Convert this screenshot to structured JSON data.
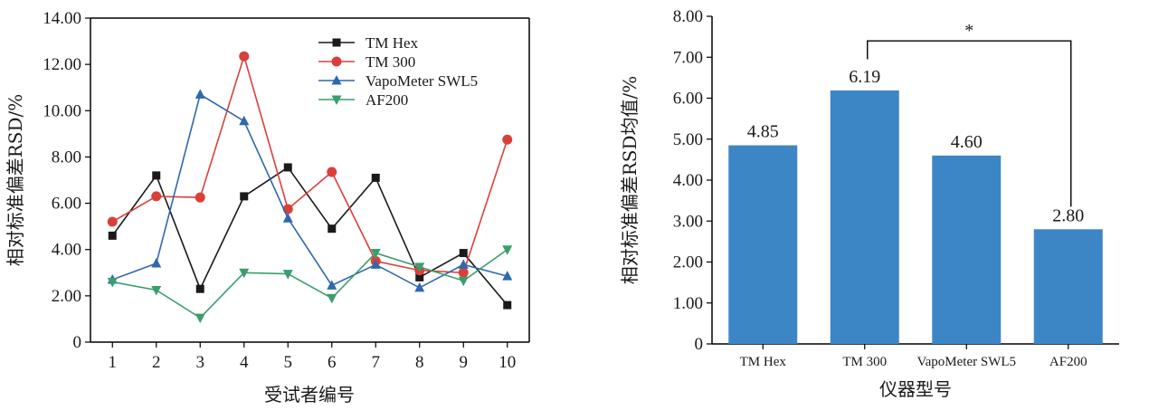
{
  "chart_data": [
    {
      "type": "line",
      "xlabel": "受试者编号",
      "ylabel": "相对标准偏差RSD/%",
      "x": [
        1,
        2,
        3,
        4,
        5,
        6,
        7,
        8,
        9,
        10
      ],
      "x_ticks": [
        "1",
        "2",
        "3",
        "4",
        "5",
        "6",
        "7",
        "8",
        "9",
        "10"
      ],
      "ylim": [
        0,
        14
      ],
      "y_ticks": [
        "0",
        "2.00",
        "4.00",
        "6.00",
        "8.00",
        "10.00",
        "12.00",
        "14.00"
      ],
      "legend_position": "top-right",
      "series": [
        {
          "name": "TM Hex",
          "color": "#1a1a1a",
          "marker": "square",
          "values": [
            4.6,
            7.2,
            2.3,
            6.3,
            7.55,
            4.9,
            7.1,
            2.8,
            3.85,
            1.6
          ]
        },
        {
          "name": "TM 300",
          "color": "#d9403a",
          "marker": "circle",
          "values": [
            5.2,
            6.3,
            6.25,
            12.35,
            5.75,
            7.35,
            3.5,
            3.1,
            3.0,
            8.75
          ]
        },
        {
          "name": "VapoMeter SWL5",
          "color": "#2f67b0",
          "marker": "triangle-up",
          "values": [
            2.7,
            3.4,
            10.7,
            9.55,
            5.35,
            2.45,
            3.35,
            2.35,
            3.35,
            2.85
          ]
        },
        {
          "name": "AF200",
          "color": "#3a9e6c",
          "marker": "triangle-down",
          "values": [
            2.6,
            2.25,
            1.05,
            3.0,
            2.95,
            1.9,
            3.85,
            3.25,
            2.65,
            4.0
          ]
        }
      ]
    },
    {
      "type": "bar",
      "xlabel": "仪器型号",
      "ylabel": "相对标准偏差RSD均值/%",
      "categories": [
        "TM Hex",
        "TM 300",
        "VapoMeter SWL5",
        "AF200"
      ],
      "values": [
        4.85,
        6.19,
        4.6,
        2.8
      ],
      "value_labels": [
        "4.85",
        "6.19",
        "4.60",
        "2.80"
      ],
      "ylim": [
        0,
        8
      ],
      "y_ticks": [
        "0",
        "1.00",
        "2.00",
        "3.00",
        "4.00",
        "5.00",
        "6.00",
        "7.00",
        "8.00"
      ],
      "bar_color": "#3d86c6",
      "significance": {
        "from": "TM 300",
        "to": "AF200",
        "label": "*"
      }
    }
  ]
}
